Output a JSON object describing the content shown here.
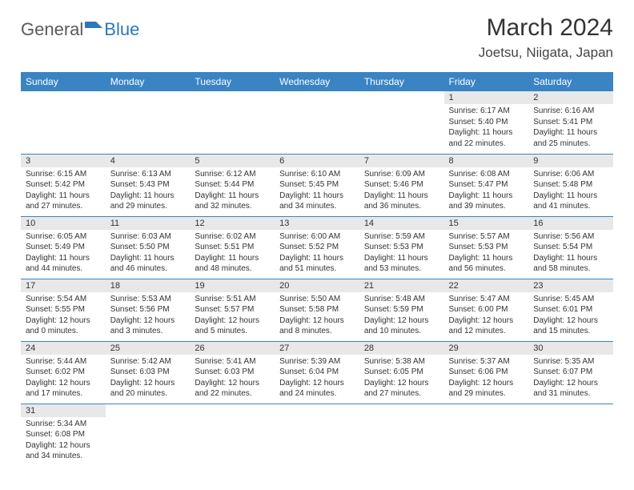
{
  "logo": {
    "text_gray": "General",
    "text_blue": "Blue",
    "icon_color": "#2e77b8"
  },
  "header": {
    "month_title": "March 2024",
    "location": "Joetsu, Niigata, Japan"
  },
  "colors": {
    "header_bg": "#3a84c4",
    "header_text": "#ffffff",
    "daynum_bg": "#e8e8e8",
    "border": "#3a84c4"
  },
  "weekdays": [
    "Sunday",
    "Monday",
    "Tuesday",
    "Wednesday",
    "Thursday",
    "Friday",
    "Saturday"
  ],
  "weeks": [
    [
      {
        "empty": true
      },
      {
        "empty": true
      },
      {
        "empty": true
      },
      {
        "empty": true
      },
      {
        "empty": true
      },
      {
        "day": "1",
        "sunrise": "Sunrise: 6:17 AM",
        "sunset": "Sunset: 5:40 PM",
        "daylight": "Daylight: 11 hours and 22 minutes."
      },
      {
        "day": "2",
        "sunrise": "Sunrise: 6:16 AM",
        "sunset": "Sunset: 5:41 PM",
        "daylight": "Daylight: 11 hours and 25 minutes."
      }
    ],
    [
      {
        "day": "3",
        "sunrise": "Sunrise: 6:15 AM",
        "sunset": "Sunset: 5:42 PM",
        "daylight": "Daylight: 11 hours and 27 minutes."
      },
      {
        "day": "4",
        "sunrise": "Sunrise: 6:13 AM",
        "sunset": "Sunset: 5:43 PM",
        "daylight": "Daylight: 11 hours and 29 minutes."
      },
      {
        "day": "5",
        "sunrise": "Sunrise: 6:12 AM",
        "sunset": "Sunset: 5:44 PM",
        "daylight": "Daylight: 11 hours and 32 minutes."
      },
      {
        "day": "6",
        "sunrise": "Sunrise: 6:10 AM",
        "sunset": "Sunset: 5:45 PM",
        "daylight": "Daylight: 11 hours and 34 minutes."
      },
      {
        "day": "7",
        "sunrise": "Sunrise: 6:09 AM",
        "sunset": "Sunset: 5:46 PM",
        "daylight": "Daylight: 11 hours and 36 minutes."
      },
      {
        "day": "8",
        "sunrise": "Sunrise: 6:08 AM",
        "sunset": "Sunset: 5:47 PM",
        "daylight": "Daylight: 11 hours and 39 minutes."
      },
      {
        "day": "9",
        "sunrise": "Sunrise: 6:06 AM",
        "sunset": "Sunset: 5:48 PM",
        "daylight": "Daylight: 11 hours and 41 minutes."
      }
    ],
    [
      {
        "day": "10",
        "sunrise": "Sunrise: 6:05 AM",
        "sunset": "Sunset: 5:49 PM",
        "daylight": "Daylight: 11 hours and 44 minutes."
      },
      {
        "day": "11",
        "sunrise": "Sunrise: 6:03 AM",
        "sunset": "Sunset: 5:50 PM",
        "daylight": "Daylight: 11 hours and 46 minutes."
      },
      {
        "day": "12",
        "sunrise": "Sunrise: 6:02 AM",
        "sunset": "Sunset: 5:51 PM",
        "daylight": "Daylight: 11 hours and 48 minutes."
      },
      {
        "day": "13",
        "sunrise": "Sunrise: 6:00 AM",
        "sunset": "Sunset: 5:52 PM",
        "daylight": "Daylight: 11 hours and 51 minutes."
      },
      {
        "day": "14",
        "sunrise": "Sunrise: 5:59 AM",
        "sunset": "Sunset: 5:53 PM",
        "daylight": "Daylight: 11 hours and 53 minutes."
      },
      {
        "day": "15",
        "sunrise": "Sunrise: 5:57 AM",
        "sunset": "Sunset: 5:53 PM",
        "daylight": "Daylight: 11 hours and 56 minutes."
      },
      {
        "day": "16",
        "sunrise": "Sunrise: 5:56 AM",
        "sunset": "Sunset: 5:54 PM",
        "daylight": "Daylight: 11 hours and 58 minutes."
      }
    ],
    [
      {
        "day": "17",
        "sunrise": "Sunrise: 5:54 AM",
        "sunset": "Sunset: 5:55 PM",
        "daylight": "Daylight: 12 hours and 0 minutes."
      },
      {
        "day": "18",
        "sunrise": "Sunrise: 5:53 AM",
        "sunset": "Sunset: 5:56 PM",
        "daylight": "Daylight: 12 hours and 3 minutes."
      },
      {
        "day": "19",
        "sunrise": "Sunrise: 5:51 AM",
        "sunset": "Sunset: 5:57 PM",
        "daylight": "Daylight: 12 hours and 5 minutes."
      },
      {
        "day": "20",
        "sunrise": "Sunrise: 5:50 AM",
        "sunset": "Sunset: 5:58 PM",
        "daylight": "Daylight: 12 hours and 8 minutes."
      },
      {
        "day": "21",
        "sunrise": "Sunrise: 5:48 AM",
        "sunset": "Sunset: 5:59 PM",
        "daylight": "Daylight: 12 hours and 10 minutes."
      },
      {
        "day": "22",
        "sunrise": "Sunrise: 5:47 AM",
        "sunset": "Sunset: 6:00 PM",
        "daylight": "Daylight: 12 hours and 12 minutes."
      },
      {
        "day": "23",
        "sunrise": "Sunrise: 5:45 AM",
        "sunset": "Sunset: 6:01 PM",
        "daylight": "Daylight: 12 hours and 15 minutes."
      }
    ],
    [
      {
        "day": "24",
        "sunrise": "Sunrise: 5:44 AM",
        "sunset": "Sunset: 6:02 PM",
        "daylight": "Daylight: 12 hours and 17 minutes."
      },
      {
        "day": "25",
        "sunrise": "Sunrise: 5:42 AM",
        "sunset": "Sunset: 6:03 PM",
        "daylight": "Daylight: 12 hours and 20 minutes."
      },
      {
        "day": "26",
        "sunrise": "Sunrise: 5:41 AM",
        "sunset": "Sunset: 6:03 PM",
        "daylight": "Daylight: 12 hours and 22 minutes."
      },
      {
        "day": "27",
        "sunrise": "Sunrise: 5:39 AM",
        "sunset": "Sunset: 6:04 PM",
        "daylight": "Daylight: 12 hours and 24 minutes."
      },
      {
        "day": "28",
        "sunrise": "Sunrise: 5:38 AM",
        "sunset": "Sunset: 6:05 PM",
        "daylight": "Daylight: 12 hours and 27 minutes."
      },
      {
        "day": "29",
        "sunrise": "Sunrise: 5:37 AM",
        "sunset": "Sunset: 6:06 PM",
        "daylight": "Daylight: 12 hours and 29 minutes."
      },
      {
        "day": "30",
        "sunrise": "Sunrise: 5:35 AM",
        "sunset": "Sunset: 6:07 PM",
        "daylight": "Daylight: 12 hours and 31 minutes."
      }
    ],
    [
      {
        "day": "31",
        "sunrise": "Sunrise: 5:34 AM",
        "sunset": "Sunset: 6:08 PM",
        "daylight": "Daylight: 12 hours and 34 minutes."
      },
      {
        "empty": true
      },
      {
        "empty": true
      },
      {
        "empty": true
      },
      {
        "empty": true
      },
      {
        "empty": true
      },
      {
        "empty": true
      }
    ]
  ]
}
